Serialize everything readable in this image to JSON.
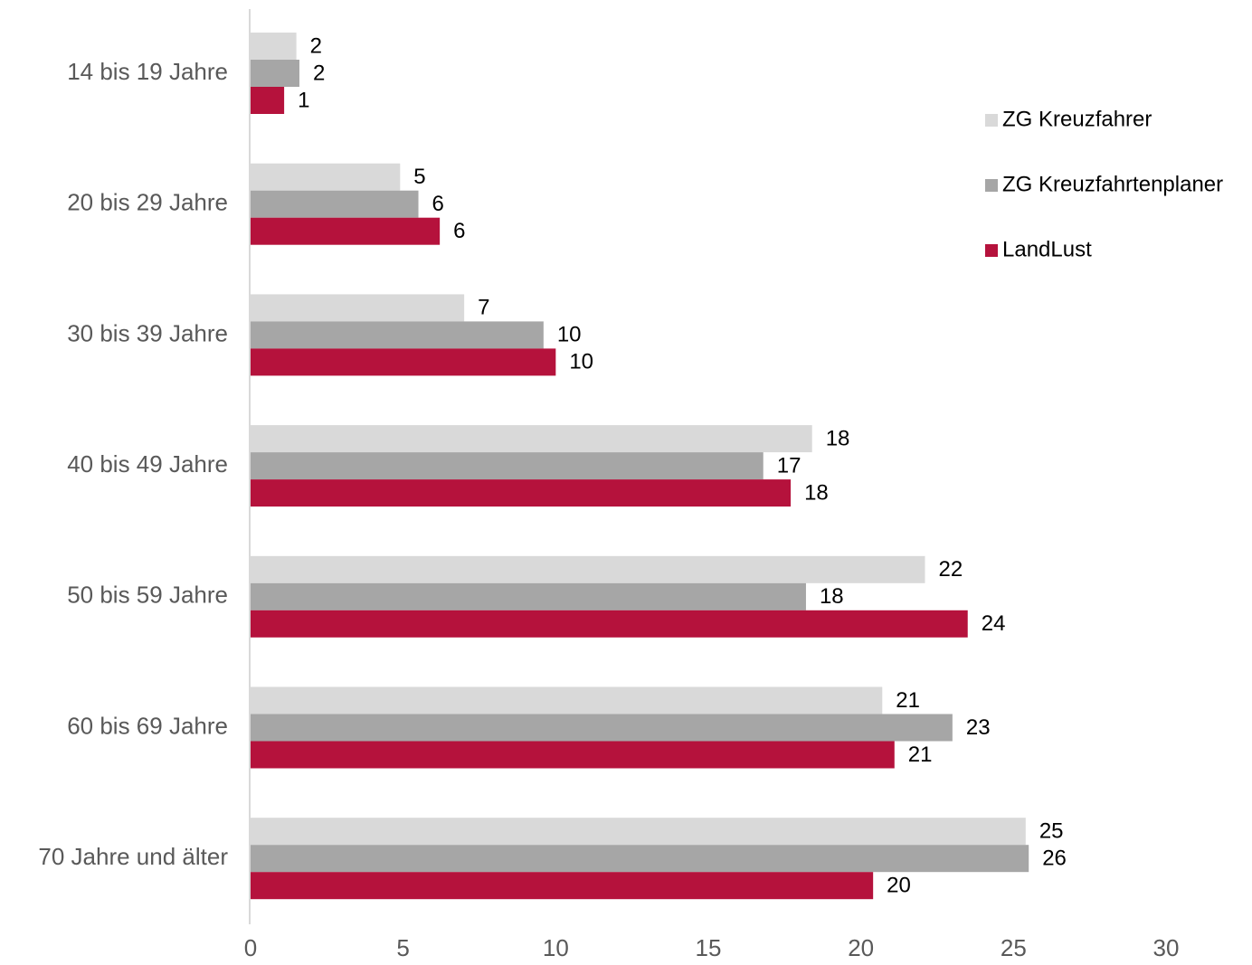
{
  "chart_data": {
    "type": "bar",
    "orientation": "horizontal",
    "categories": [
      "14 bis 19 Jahre",
      "20 bis 29 Jahre",
      "30 bis 39 Jahre",
      "40 bis 49 Jahre",
      "50 bis 59 Jahre",
      "60 bis 69 Jahre",
      "70 Jahre und älter"
    ],
    "series": [
      {
        "name": "ZG Kreuzfahrer",
        "color": "#d9d9d9",
        "values": [
          1.5,
          4.9,
          7.0,
          18.4,
          22.1,
          20.7,
          25.4
        ],
        "labels": [
          "2",
          "5",
          "7",
          "18",
          "22",
          "21",
          "25"
        ]
      },
      {
        "name": "ZG Kreuzfahrtenplaner",
        "color": "#a6a6a6",
        "values": [
          1.6,
          5.5,
          9.6,
          16.8,
          18.2,
          23.0,
          25.5
        ],
        "labels": [
          "2",
          "6",
          "10",
          "17",
          "18",
          "23",
          "26"
        ]
      },
      {
        "name": "LandLust",
        "color": "#b5123c",
        "values": [
          1.1,
          6.2,
          10.0,
          17.7,
          23.5,
          21.1,
          20.4
        ],
        "labels": [
          "1",
          "6",
          "10",
          "18",
          "24",
          "21",
          "20"
        ]
      }
    ],
    "xlim": [
      0,
      30
    ],
    "xticks": [
      "0",
      "5",
      "10",
      "15",
      "20",
      "25",
      "30"
    ],
    "grid": false,
    "legend_position": "right"
  }
}
